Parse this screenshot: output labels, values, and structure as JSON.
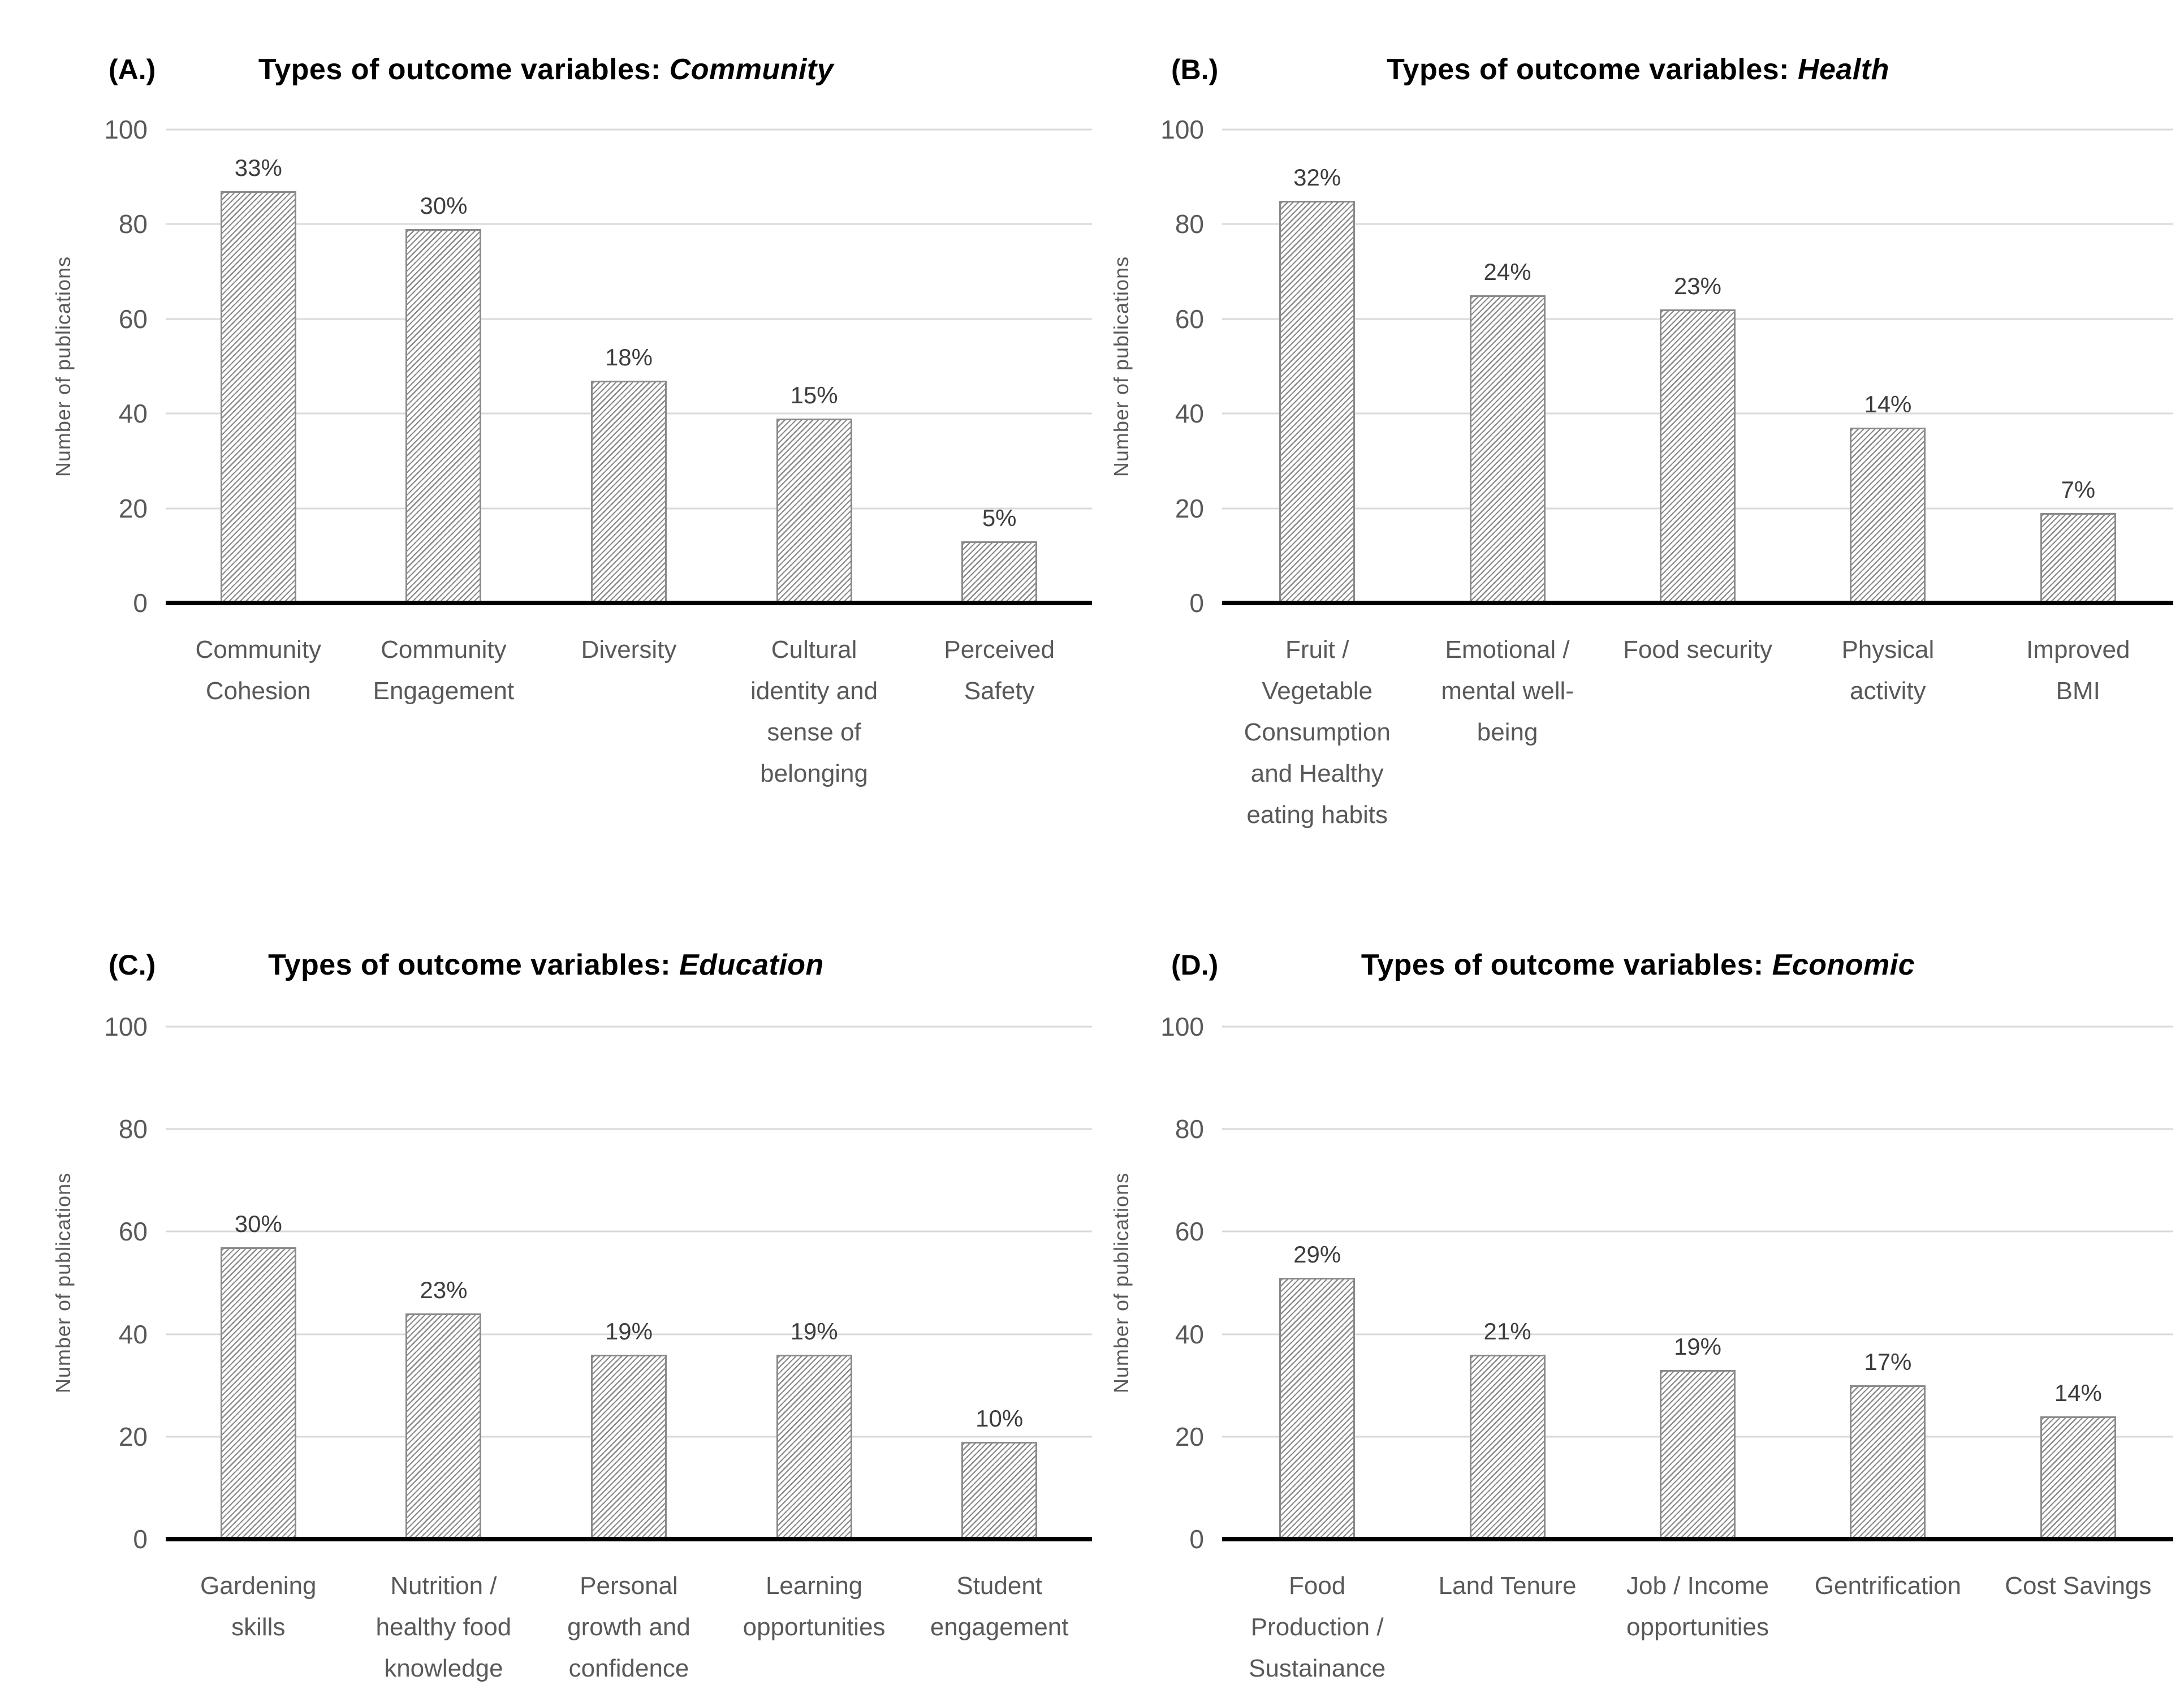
{
  "colors": {
    "background": "#ffffff",
    "title_text": "#000000",
    "axis_text": "#595959",
    "data_label_text": "#3d3d3d",
    "gridline": "#d9d9d9",
    "x_axis_line": "#000000",
    "bar_fill": "#ffffff",
    "bar_hatch": "#8a8a8a",
    "bar_border": "#8a8a8a"
  },
  "chart_data": [
    {
      "type": "bar",
      "panel_label": "(A.)",
      "title_prefix": "Types of outcome variables:",
      "title_category": "Community",
      "ylabel": "Number of publications",
      "ylim": [
        0,
        100
      ],
      "yticks": [
        0,
        20,
        40,
        60,
        80,
        100
      ],
      "grid": "horizontal",
      "legend": "none",
      "categories": [
        "Community\nCohesion",
        "Community\nEngagement",
        "Diversity",
        "Cultural\nidentity and\nsense of\nbelonging",
        "Perceived\nSafety"
      ],
      "values": [
        87,
        79,
        47,
        39,
        13
      ],
      "labels": [
        "33%",
        "30%",
        "18%",
        "15%",
        "5%"
      ]
    },
    {
      "type": "bar",
      "panel_label": "(B.)",
      "title_prefix": "Types of outcome variables:",
      "title_category": "Health",
      "ylabel": "Number of publications",
      "ylim": [
        0,
        100
      ],
      "yticks": [
        0,
        20,
        40,
        60,
        80,
        100
      ],
      "grid": "horizontal",
      "legend": "none",
      "categories": [
        "Fruit /\nVegetable\nConsumption\nand Healthy\neating habits",
        "Emotional /\nmental well-\nbeing",
        "Food security",
        "Physical\nactivity",
        "Improved\nBMI"
      ],
      "values": [
        85,
        65,
        62,
        37,
        19
      ],
      "labels": [
        "32%",
        "24%",
        "23%",
        "14%",
        "7%"
      ]
    },
    {
      "type": "bar",
      "panel_label": "(C.)",
      "title_prefix": "Types of outcome variables:",
      "title_category": "Education",
      "ylabel": "Number of publications",
      "ylim": [
        0,
        100
      ],
      "yticks": [
        0,
        20,
        40,
        60,
        80,
        100
      ],
      "grid": "horizontal",
      "legend": "none",
      "categories": [
        "Gardening\nskills",
        "Nutrition /\nhealthy food\nknowledge",
        "Personal\ngrowth and\nconfidence",
        "Learning\nopportunities",
        "Student\nengagement"
      ],
      "values": [
        57,
        44,
        36,
        36,
        19
      ],
      "labels": [
        "30%",
        "23%",
        "19%",
        "19%",
        "10%"
      ]
    },
    {
      "type": "bar",
      "panel_label": "(D.)",
      "title_prefix": "Types of outcome variables:",
      "title_category": "Economic",
      "ylabel": "Number of publications",
      "ylim": [
        0,
        100
      ],
      "yticks": [
        0,
        20,
        40,
        60,
        80,
        100
      ],
      "grid": "horizontal",
      "legend": "none",
      "categories": [
        "Food\nProduction /\nSustainance",
        "Land Tenure",
        "Job / Income\nopportunities",
        "Gentrification",
        "Cost Savings"
      ],
      "values": [
        51,
        36,
        33,
        30,
        24
      ],
      "labels": [
        "29%",
        "21%",
        "19%",
        "17%",
        "14%"
      ]
    }
  ]
}
